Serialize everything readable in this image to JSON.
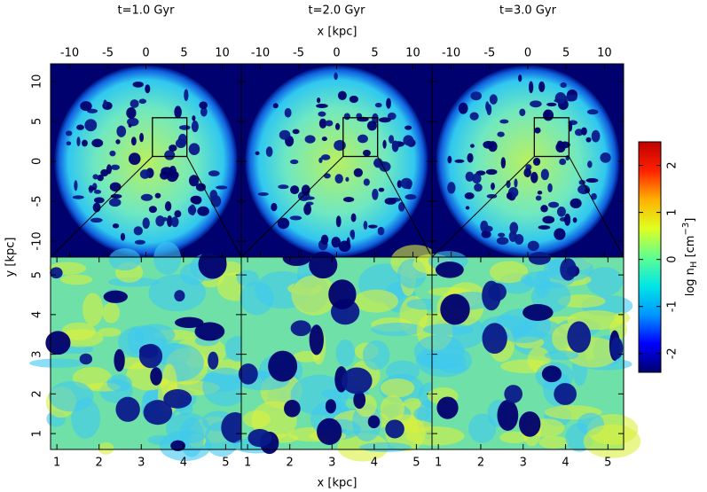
{
  "chart_data": {
    "type": "heatmap",
    "panel_titles": [
      "t=1.0 Gyr",
      "t=2.0 Gyr",
      "t=3.0 Gyr"
    ],
    "top_xlabel": "x [kpc]",
    "bottom_xlabel": "x [kpc]",
    "ylabel": "y [kpc]",
    "top": {
      "xlim": [
        -12.5,
        12.5
      ],
      "ylim": [
        -12,
        12.2
      ],
      "xticks": [
        -10,
        -5,
        0,
        5,
        10
      ],
      "yticks": [
        -10,
        -5,
        0,
        5,
        10
      ]
    },
    "bottom": {
      "xlim": [
        0.85,
        5.37
      ],
      "ylim": [
        0.6,
        5.45
      ],
      "xticks": [
        1,
        2,
        3,
        4,
        5
      ],
      "yticks": [
        1,
        2,
        3,
        4,
        5
      ]
    },
    "colorbar": {
      "label": [
        "log n",
        "H",
        " [cm",
        "−3",
        "]"
      ],
      "lim": [
        -2.4,
        2.5
      ],
      "ticks": [
        -2,
        -1,
        0,
        1,
        2
      ],
      "colors": [
        "#00006e",
        "#0000ff",
        "#0096ff",
        "#00e6e6",
        "#60ff90",
        "#e0ff20",
        "#ffb000",
        "#ff2000",
        "#c00000"
      ]
    }
  }
}
